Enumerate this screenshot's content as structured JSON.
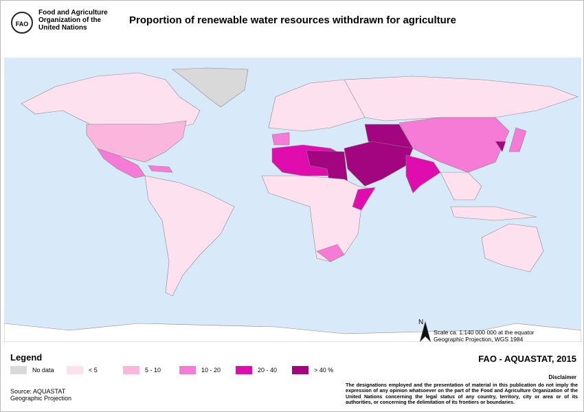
{
  "header": {
    "org_lines": [
      "Food and Agriculture",
      "Organization of the",
      "United Nations"
    ],
    "logo": "FAO",
    "title": "Proportion of renewable water resources withdrawn for agriculture"
  },
  "map": {
    "north": "N",
    "scale_lines": [
      "Scale ca. 1:140 000 000 at the equator",
      "Geographic Projection, WGS 1984"
    ]
  },
  "legend": {
    "title": "Legend",
    "items": [
      {
        "label": "No data",
        "color": "#d9d9d9"
      },
      {
        "label": "< 5",
        "color": "#fde1ee"
      },
      {
        "label": "5 - 10",
        "color": "#fab6dd"
      },
      {
        "label": "10 - 20",
        "color": "#f57bd6"
      },
      {
        "label": "20 - 40",
        "color": "#df0cae"
      },
      {
        "label": "> 40 %",
        "color": "#a3047f"
      }
    ]
  },
  "source": [
    "Source: AQUASTAT",
    "Geographic Projection"
  ],
  "credit": "FAO - AQUASTAT, 2015",
  "disclaimer": {
    "title": "Disclaimer",
    "text": "The designations employed and the presentation  of material in this publication do not imply the expression of any opinion whatsoever on the part of the Food and Agriculture Organization of the United Nations concerning the legal status of any country, territory, city or area or of its authorities, or concerning the delimitation of its frontiers or boundaries."
  }
}
